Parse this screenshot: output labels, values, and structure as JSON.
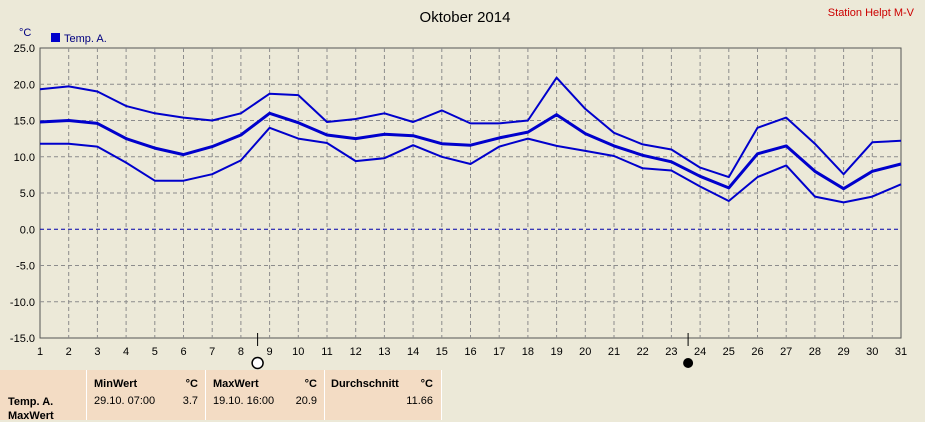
{
  "title": "Oktober 2014",
  "station": "Station Helpt M-V",
  "unit": "°C",
  "colors": {
    "series": "#0000cc",
    "grid": "#8c8c8c",
    "zero": "#0000aa",
    "station": "#cc0000",
    "bg": "#ece9d8",
    "footer": "#f3dcc4"
  },
  "chart_data": {
    "type": "line",
    "title": "Oktober 2014",
    "ylabel": "°C",
    "ylim": [
      -15,
      25
    ],
    "yticks": [
      "25.0",
      "20.0",
      "15.0",
      "10.0",
      "5.0",
      "0.0",
      "-5.0",
      "-10.0",
      "-15.0"
    ],
    "x": [
      1,
      2,
      3,
      4,
      5,
      6,
      7,
      8,
      9,
      10,
      11,
      12,
      13,
      14,
      15,
      16,
      17,
      18,
      19,
      20,
      21,
      22,
      23,
      24,
      25,
      26,
      27,
      28,
      29,
      30,
      31
    ],
    "grid": true,
    "legend": "top-left",
    "legend_label": "Temp. A.",
    "series": [
      {
        "role": "max",
        "values": [
          19.3,
          19.7,
          19.0,
          17.0,
          16.0,
          15.4,
          15.0,
          16.0,
          18.7,
          18.5,
          14.8,
          15.2,
          16.0,
          14.8,
          16.4,
          14.6,
          14.6,
          15.0,
          20.9,
          16.6,
          13.3,
          11.7,
          11.0,
          8.5,
          7.2,
          14.0,
          15.4,
          11.8,
          7.6,
          12.0,
          12.2
        ]
      },
      {
        "role": "avg",
        "values": [
          14.8,
          15.0,
          14.6,
          12.5,
          11.2,
          10.3,
          11.4,
          13.0,
          16.0,
          14.7,
          13.0,
          12.5,
          13.1,
          12.9,
          11.8,
          11.6,
          12.6,
          13.4,
          15.8,
          13.2,
          11.5,
          10.2,
          9.3,
          7.3,
          5.7,
          10.4,
          11.5,
          8.0,
          5.6,
          8.0,
          9.0
        ]
      },
      {
        "role": "min",
        "values": [
          11.8,
          11.8,
          11.4,
          9.2,
          6.7,
          6.7,
          7.6,
          9.5,
          14.0,
          12.5,
          11.9,
          9.4,
          9.8,
          11.6,
          10.0,
          9.0,
          11.4,
          12.5,
          11.5,
          10.8,
          10.1,
          8.4,
          8.1,
          5.9,
          3.9,
          7.2,
          8.8,
          4.5,
          3.7,
          4.5,
          6.2
        ]
      }
    ],
    "events": [
      {
        "day": "9",
        "symbol": "full-moon"
      },
      {
        "day": "24",
        "symbol": "new-moon"
      }
    ]
  },
  "footer": {
    "row_label": "Temp. A.",
    "row_label2": "MaxWert",
    "min": {
      "header": "MinWert",
      "unit": "°C",
      "time": "29.10.  07:00",
      "value": "3.7"
    },
    "max": {
      "header": "MaxWert",
      "unit": "°C",
      "time": "19.10.  16:00",
      "value": "20.9"
    },
    "avg": {
      "header": "Durchschnitt",
      "unit": "°C",
      "value": "11.66"
    }
  }
}
